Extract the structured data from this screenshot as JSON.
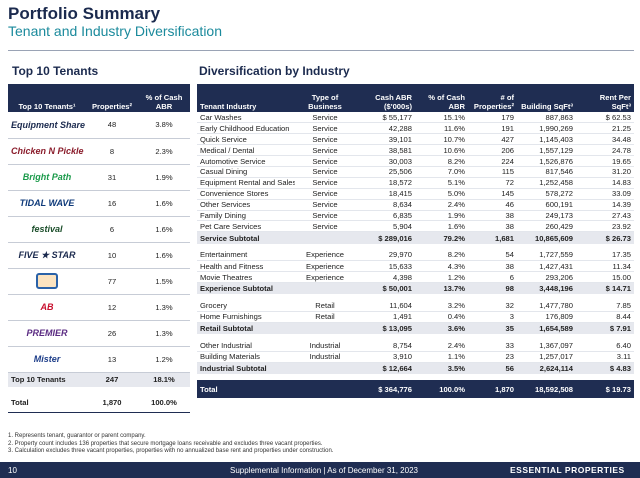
{
  "header": {
    "title": "Portfolio Summary",
    "subtitle": "Tenant and Industry Diversification"
  },
  "tenants": {
    "heading": "Top 10 Tenants",
    "columns": [
      "Top 10 Tenants¹",
      "Properties²",
      "% of Cash ABR"
    ],
    "rows": [
      {
        "logo": "Equipment Share",
        "properties": "48",
        "pct": "3.8%"
      },
      {
        "logo": "Chicken N Pickle",
        "properties": "8",
        "pct": "2.3%"
      },
      {
        "logo": "Bright Path",
        "properties": "31",
        "pct": "1.9%"
      },
      {
        "logo": "TIDAL WAVE",
        "properties": "16",
        "pct": "1.6%"
      },
      {
        "logo": "festival",
        "properties": "6",
        "pct": "1.6%"
      },
      {
        "logo": "FIVE ★ STAR",
        "properties": "10",
        "pct": "1.6%"
      },
      {
        "properties": "77",
        "pct": "1.5%"
      },
      {
        "logo": "AB",
        "properties": "12",
        "pct": "1.3%"
      },
      {
        "logo": "PREMIER",
        "properties": "26",
        "pct": "1.3%"
      },
      {
        "logo": "Mister",
        "properties": "13",
        "pct": "1.2%"
      }
    ],
    "top10": {
      "label": "Top 10 Tenants",
      "properties": "247",
      "pct": "18.1%"
    },
    "total": {
      "label": "Total",
      "properties": "1,870",
      "pct": "100.0%"
    }
  },
  "industry": {
    "heading": "Diversification by Industry",
    "columns": [
      "Tenant Industry",
      "Type of Business",
      "Cash ABR ($'000s)",
      "% of Cash ABR",
      "# of Properties²",
      "Building SqFt³",
      "Rent Per SqFt³"
    ],
    "sections": [
      {
        "rows": [
          [
            "Car Washes",
            "Service",
            "$ 55,177",
            "15.1%",
            "179",
            "887,863",
            "$ 62.53"
          ],
          [
            "Early Childhood Education",
            "Service",
            "42,288",
            "11.6%",
            "191",
            "1,990,269",
            "21.25"
          ],
          [
            "Quick Service",
            "Service",
            "39,101",
            "10.7%",
            "427",
            "1,145,403",
            "34.48"
          ],
          [
            "Medical / Dental",
            "Service",
            "38,581",
            "10.6%",
            "206",
            "1,557,129",
            "24.78"
          ],
          [
            "Automotive Service",
            "Service",
            "30,003",
            "8.2%",
            "224",
            "1,526,876",
            "19.65"
          ],
          [
            "Casual Dining",
            "Service",
            "25,506",
            "7.0%",
            "115",
            "817,546",
            "31.20"
          ],
          [
            "Equipment Rental and Sales",
            "Service",
            "18,572",
            "5.1%",
            "72",
            "1,252,458",
            "14.83"
          ],
          [
            "Convenience Stores",
            "Service",
            "18,415",
            "5.0%",
            "145",
            "578,272",
            "33.09"
          ],
          [
            "Other Services",
            "Service",
            "8,634",
            "2.4%",
            "46",
            "600,191",
            "14.39"
          ],
          [
            "Family Dining",
            "Service",
            "6,835",
            "1.9%",
            "38",
            "249,173",
            "27.43"
          ],
          [
            "Pet Care Services",
            "Service",
            "5,904",
            "1.6%",
            "38",
            "260,429",
            "23.92"
          ]
        ],
        "subtotal": [
          "Service Subtotal",
          "$ 289,016",
          "79.2%",
          "1,681",
          "10,865,609",
          "$ 26.73"
        ]
      },
      {
        "rows": [
          [
            "Entertainment",
            "Experience",
            "29,970",
            "8.2%",
            "54",
            "1,727,559",
            "17.35"
          ],
          [
            "Health and Fitness",
            "Experience",
            "15,633",
            "4.3%",
            "38",
            "1,427,431",
            "11.34"
          ],
          [
            "Movie Theatres",
            "Experience",
            "4,398",
            "1.2%",
            "6",
            "293,206",
            "15.00"
          ]
        ],
        "subtotal": [
          "Experience Subtotal",
          "$ 50,001",
          "13.7%",
          "98",
          "3,448,196",
          "$ 14.71"
        ]
      },
      {
        "rows": [
          [
            "Grocery",
            "Retail",
            "11,604",
            "3.2%",
            "32",
            "1,477,780",
            "7.85"
          ],
          [
            "Home Furnishings",
            "Retail",
            "1,491",
            "0.4%",
            "3",
            "176,809",
            "8.44"
          ]
        ],
        "subtotal": [
          "Retail Subtotal",
          "$ 13,095",
          "3.6%",
          "35",
          "1,654,589",
          "$ 7.91"
        ]
      },
      {
        "rows": [
          [
            "Other Industrial",
            "Industrial",
            "8,754",
            "2.4%",
            "33",
            "1,367,097",
            "6.40"
          ],
          [
            "Building Materials",
            "Industrial",
            "3,910",
            "1.1%",
            "23",
            "1,257,017",
            "3.11"
          ]
        ],
        "subtotal": [
          "Industrial Subtotal",
          "$ 12,664",
          "3.5%",
          "56",
          "2,624,114",
          "$ 4.83"
        ]
      }
    ],
    "total": [
      "Total",
      "$ 364,776",
      "100.0%",
      "1,870",
      "18,592,508",
      "$ 19.73"
    ]
  },
  "footnotes": [
    "1. Represents tenant, guarantor or parent company.",
    "2. Property count includes 136 properties that secure mortgage loans receivable and excludes three vacant properties.",
    "3. Calculation excludes three vacant properties, properties with no annualized base rent and properties under construction."
  ],
  "footer": {
    "page": "10",
    "text": "Supplemental Information | As of December 31, 2023",
    "brand": "ESSENTIAL PROPERTIES"
  }
}
